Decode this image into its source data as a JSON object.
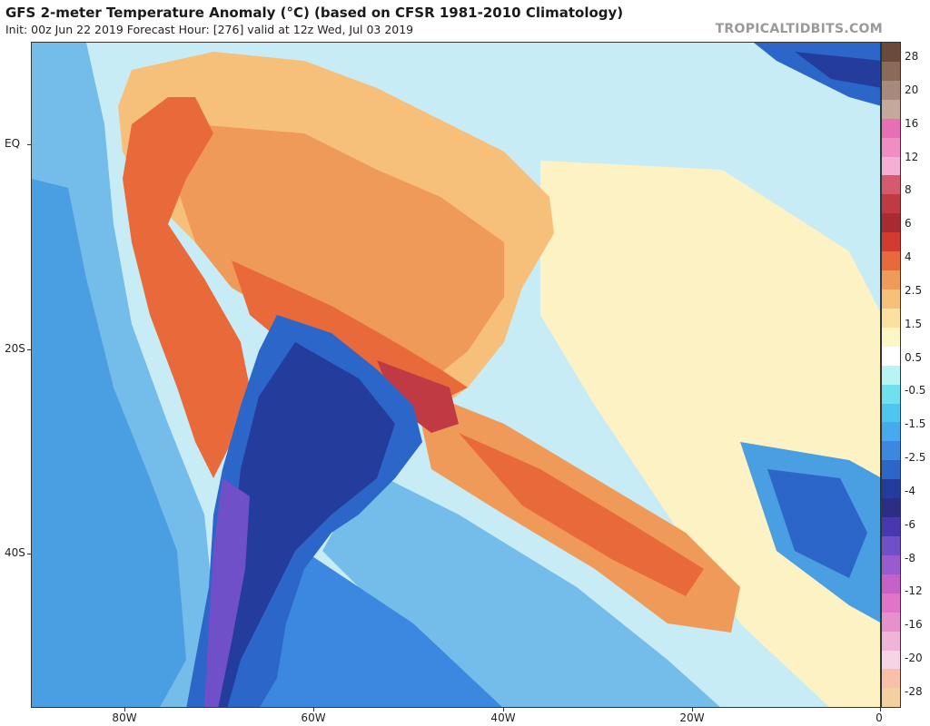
{
  "header": {
    "title": "GFS 2-meter Temperature Anomaly (°C) (based on CFSR 1981-2010 Climatology)",
    "subtitle": "Init: 00z Jun 22 2019   Forecast Hour: [276]   valid at 12z Wed, Jul 03 2019",
    "watermark": "TROPICALTIDBITS.COM"
  },
  "axes": {
    "lat_labels": [
      "EQ",
      "20S",
      "40S"
    ],
    "lon_labels": [
      "80W",
      "60W",
      "40W",
      "20W",
      "0"
    ]
  },
  "colorbar": {
    "labels": [
      "28",
      "20",
      "16",
      "12",
      "8",
      "6",
      "4",
      "2.5",
      "1.5",
      "0.5",
      "-0.5",
      "-1.5",
      "-2.5",
      "-4",
      "-6",
      "-8",
      "-12",
      "-16",
      "-20",
      "-28"
    ],
    "colors": [
      "#6b4a3a",
      "#8c6a5a",
      "#a88a7c",
      "#c4a89c",
      "#e86fb4",
      "#f08ec4",
      "#f4b0d4",
      "#d65a6e",
      "#c03a44",
      "#a82a32",
      "#d23c30",
      "#e86a3a",
      "#f09a5a",
      "#f6c07a",
      "#fbe0a0",
      "#fff6c8",
      "#ffffff",
      "#b8f4f4",
      "#6ee0ee",
      "#4cc8f0",
      "#48aaee",
      "#3c88e0",
      "#2c66c8",
      "#243c9c",
      "#2c2e86",
      "#4838b0",
      "#7050c8",
      "#9a5ad0",
      "#c462c8",
      "#e074c8",
      "#e890cc",
      "#f0b4d8",
      "#f6d4e6",
      "#f8c0a8",
      "#f4d0a0"
    ]
  }
}
